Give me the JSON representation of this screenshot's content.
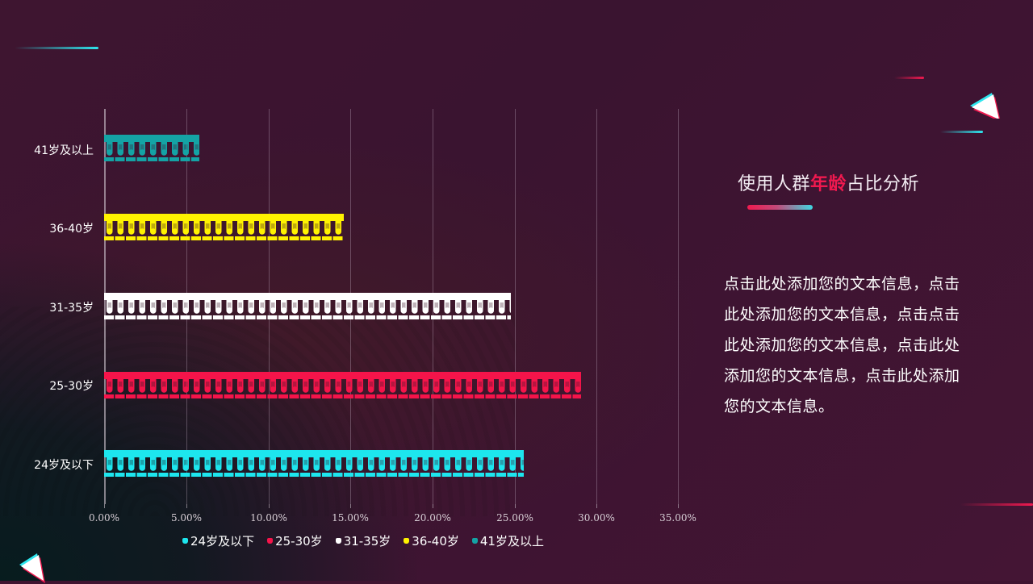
{
  "slide": {
    "title_prefix": "使用人群",
    "title_highlight": "年龄",
    "title_suffix": "占比分析",
    "body_text": "点击此处添加您的文本信息，点击此处添加您的文本信息，点击点击此处添加您的文本信息，点击此处添加您的文本信息，点击此处添加您的文本信息。",
    "colors": {
      "background": "#3f1430",
      "accent_red": "#f0194f",
      "accent_cyan": "#2ee6ee"
    }
  },
  "chart_data": {
    "type": "bar",
    "orientation": "horizontal",
    "title": "",
    "xlabel": "",
    "ylabel": "",
    "categories": [
      "24岁及以下",
      "25-30岁",
      "31-35岁",
      "36-40岁",
      "41岁及以上"
    ],
    "values": [
      25.6,
      29.1,
      24.8,
      14.6,
      5.8
    ],
    "value_unit": "%",
    "colors": [
      "#1de6ee",
      "#f5144a",
      "#ffffff",
      "#fff200",
      "#14a3a5"
    ],
    "xlim": [
      0,
      35
    ],
    "xticks": [
      "0.00%",
      "5.00%",
      "10.00%",
      "15.00%",
      "20.00%",
      "25.00%",
      "30.00%",
      "35.00%"
    ],
    "grid": "vertical",
    "legend_position": "bottom",
    "legend": [
      "24岁及以下",
      "25-30岁",
      "31-35岁",
      "36-40岁",
      "41岁及以上"
    ]
  }
}
